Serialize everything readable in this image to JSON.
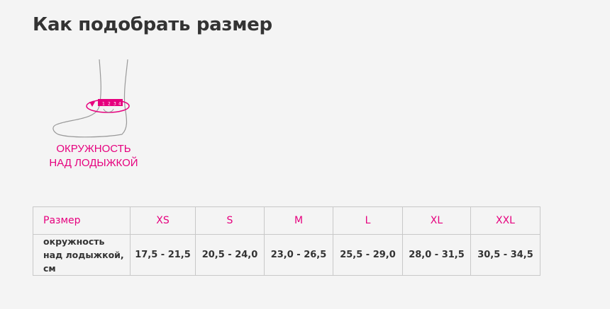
{
  "title": "Как подобрать размер",
  "illustration": {
    "icon": "ankle-measure-icon",
    "caption_lines": [
      "ОКРУЖНОСТЬ",
      "НАД ЛОДЫЖКОЙ"
    ],
    "tape_marks": [
      "1",
      "2",
      "3",
      "4"
    ],
    "accent_color": "#e6007e"
  },
  "table": {
    "header_label": "Размер",
    "sizes": [
      "XS",
      "S",
      "M",
      "L",
      "XL",
      "XXL"
    ],
    "row_label": "окружность над лодыжкой, см",
    "values": [
      "17,5 - 21,5",
      "20,5 - 24,0",
      "23,0 - 26,5",
      "25,5 - 29,0",
      "28,0 - 31,5",
      "30,5 - 34,5"
    ]
  }
}
